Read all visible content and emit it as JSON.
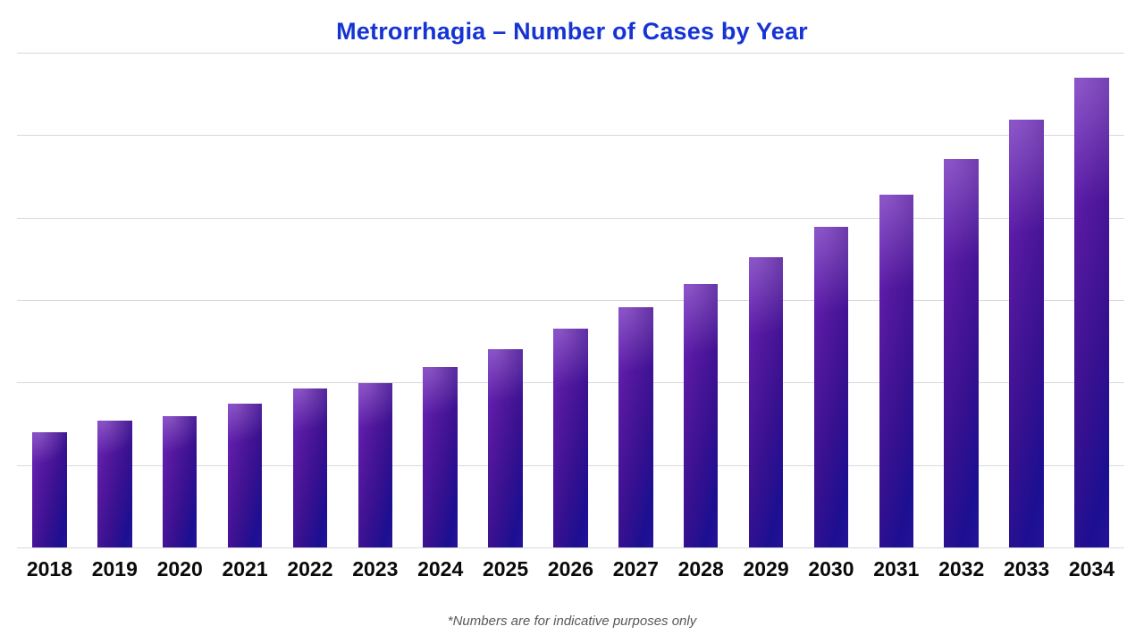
{
  "title": {
    "text": "Metrorrhagia – Number of Cases by Year",
    "color": "#1634d4"
  },
  "footnote": "*Numbers are for indicative purposes only",
  "chart_data": {
    "type": "bar",
    "title": "Metrorrhagia – Number of Cases by Year",
    "categories": [
      "2018",
      "2019",
      "2020",
      "2021",
      "2022",
      "2023",
      "2024",
      "2025",
      "2026",
      "2027",
      "2028",
      "2029",
      "2030",
      "2031",
      "2032",
      "2033",
      "2034"
    ],
    "values_pct_of_plot_height": [
      23.2,
      25.6,
      26.6,
      29.0,
      32.2,
      33.2,
      36.5,
      40.1,
      44.3,
      48.6,
      53.2,
      58.7,
      64.8,
      71.3,
      78.5,
      86.4,
      95.0
    ],
    "xlabel": "",
    "ylabel": "",
    "y_axis": {
      "tick_labels_visible": false,
      "gridline_count": 7,
      "grid_on": true
    },
    "legend": "none",
    "colors": {
      "bar_gradient_start": "#6e27bc",
      "bar_gradient_mid": "#4f169a",
      "bar_gradient_end": "#1e1191",
      "gridline": "#d9d9d9",
      "title": "#1634d4",
      "x_labels": "#0a0a0a",
      "footnote": "#595959"
    }
  }
}
